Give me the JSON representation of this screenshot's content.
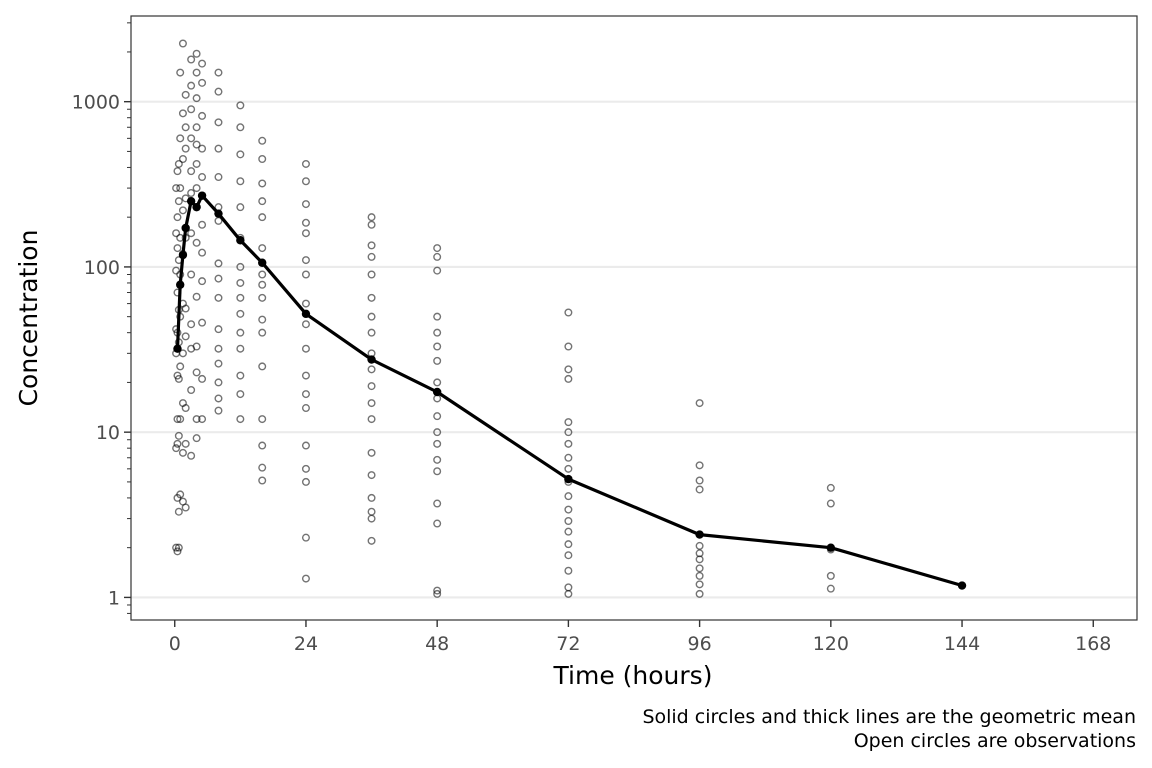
{
  "chart_data": {
    "type": "scatter",
    "xlabel": "Time (hours)",
    "ylabel": "Concentration",
    "caption": [
      "Solid circles and thick lines are the geometric mean",
      "Open circles are observations"
    ],
    "xlim": [
      -8,
      176
    ],
    "ylim": [
      0.73,
      3300
    ],
    "y_scale": "log",
    "x_ticks": [
      0,
      24,
      48,
      72,
      96,
      120,
      144,
      168
    ],
    "x_tick_labels": [
      "0",
      "24",
      "48",
      "72",
      "96",
      "120",
      "144",
      "168"
    ],
    "y_ticks": [
      1,
      10,
      100,
      1000
    ],
    "y_tick_labels": [
      "1",
      "10",
      "100",
      "1000"
    ],
    "grid": "horizontal major",
    "series": [
      {
        "name": "Geometric mean",
        "marker": "solid circle",
        "line": "thick",
        "x": [
          0.5,
          1,
          1.5,
          2,
          3,
          4,
          5,
          8,
          12,
          16,
          24,
          36,
          48,
          72,
          96,
          120,
          144
        ],
        "y": [
          32,
          78,
          118,
          172,
          250,
          230,
          270,
          210,
          145,
          106,
          52,
          27.5,
          17.5,
          5.2,
          2.4,
          2.0,
          1.18
        ]
      },
      {
        "name": "Observations",
        "marker": "open circle",
        "points": [
          [
            0.25,
            2.0
          ],
          [
            0.25,
            8.0
          ],
          [
            0.25,
            30
          ],
          [
            0.25,
            42
          ],
          [
            0.25,
            95
          ],
          [
            0.25,
            160
          ],
          [
            0.25,
            300
          ],
          [
            0.5,
            1.9
          ],
          [
            0.5,
            4.0
          ],
          [
            0.5,
            8.5
          ],
          [
            0.5,
            12
          ],
          [
            0.5,
            22
          ],
          [
            0.5,
            40
          ],
          [
            0.5,
            70
          ],
          [
            0.5,
            130
          ],
          [
            0.5,
            200
          ],
          [
            0.5,
            380
          ],
          [
            0.75,
            2.0
          ],
          [
            0.75,
            3.3
          ],
          [
            0.75,
            9.5
          ],
          [
            0.75,
            21
          ],
          [
            0.75,
            35
          ],
          [
            0.75,
            55
          ],
          [
            0.75,
            110
          ],
          [
            0.75,
            250
          ],
          [
            0.75,
            420
          ],
          [
            1.0,
            4.2
          ],
          [
            1.0,
            12
          ],
          [
            1.0,
            25
          ],
          [
            1.0,
            50
          ],
          [
            1.0,
            90
          ],
          [
            1.0,
            150
          ],
          [
            1.0,
            300
          ],
          [
            1.0,
            600
          ],
          [
            1.0,
            1500
          ],
          [
            1.5,
            3.8
          ],
          [
            1.5,
            7.5
          ],
          [
            1.5,
            15
          ],
          [
            1.5,
            30
          ],
          [
            1.5,
            60
          ],
          [
            1.5,
            120
          ],
          [
            1.5,
            220
          ],
          [
            1.5,
            450
          ],
          [
            1.5,
            850
          ],
          [
            1.5,
            2250
          ],
          [
            2,
            3.5
          ],
          [
            2,
            8.5
          ],
          [
            2,
            14
          ],
          [
            2,
            38
          ],
          [
            2,
            56
          ],
          [
            2,
            150
          ],
          [
            2,
            260
          ],
          [
            2,
            520
          ],
          [
            2,
            700
          ],
          [
            2,
            1100
          ],
          [
            3,
            7.2
          ],
          [
            3,
            18
          ],
          [
            3,
            32
          ],
          [
            3,
            45
          ],
          [
            3,
            90
          ],
          [
            3,
            160
          ],
          [
            3,
            280
          ],
          [
            3,
            380
          ],
          [
            3,
            600
          ],
          [
            3,
            900
          ],
          [
            3,
            1250
          ],
          [
            3,
            1800
          ],
          [
            4,
            9.2
          ],
          [
            4,
            12
          ],
          [
            4,
            23
          ],
          [
            4,
            33
          ],
          [
            4,
            66
          ],
          [
            4,
            140
          ],
          [
            4,
            230
          ],
          [
            4,
            300
          ],
          [
            4,
            420
          ],
          [
            4,
            550
          ],
          [
            4,
            700
          ],
          [
            4,
            1050
          ],
          [
            4,
            1500
          ],
          [
            4,
            1950
          ],
          [
            5,
            12
          ],
          [
            5,
            21
          ],
          [
            5,
            46
          ],
          [
            5,
            82
          ],
          [
            5,
            122
          ],
          [
            5,
            180
          ],
          [
            5,
            270
          ],
          [
            5,
            350
          ],
          [
            5,
            520
          ],
          [
            5,
            820
          ],
          [
            5,
            1300
          ],
          [
            5,
            1700
          ],
          [
            8,
            13.5
          ],
          [
            8,
            16
          ],
          [
            8,
            20
          ],
          [
            8,
            26
          ],
          [
            8,
            32
          ],
          [
            8,
            42
          ],
          [
            8,
            65
          ],
          [
            8,
            85
          ],
          [
            8,
            105
          ],
          [
            8,
            190
          ],
          [
            8,
            230
          ],
          [
            8,
            350
          ],
          [
            8,
            520
          ],
          [
            8,
            750
          ],
          [
            8,
            1150
          ],
          [
            8,
            1500
          ],
          [
            12,
            12
          ],
          [
            12,
            17
          ],
          [
            12,
            22
          ],
          [
            12,
            32
          ],
          [
            12,
            40
          ],
          [
            12,
            52
          ],
          [
            12,
            65
          ],
          [
            12,
            80
          ],
          [
            12,
            100
          ],
          [
            12,
            150
          ],
          [
            12,
            230
          ],
          [
            12,
            330
          ],
          [
            12,
            480
          ],
          [
            12,
            700
          ],
          [
            12,
            950
          ],
          [
            16,
            5.1
          ],
          [
            16,
            6.1
          ],
          [
            16,
            8.3
          ],
          [
            16,
            12
          ],
          [
            16,
            25
          ],
          [
            16,
            40
          ],
          [
            16,
            48
          ],
          [
            16,
            65
          ],
          [
            16,
            78
          ],
          [
            16,
            90
          ],
          [
            16,
            130
          ],
          [
            16,
            200
          ],
          [
            16,
            250
          ],
          [
            16,
            320
          ],
          [
            16,
            450
          ],
          [
            16,
            580
          ],
          [
            24,
            1.3
          ],
          [
            24,
            2.3
          ],
          [
            24,
            5.0
          ],
          [
            24,
            6.0
          ],
          [
            24,
            8.3
          ],
          [
            24,
            14
          ],
          [
            24,
            17
          ],
          [
            24,
            22
          ],
          [
            24,
            32
          ],
          [
            24,
            45
          ],
          [
            24,
            60
          ],
          [
            24,
            90
          ],
          [
            24,
            110
          ],
          [
            24,
            160
          ],
          [
            24,
            185
          ],
          [
            24,
            240
          ],
          [
            24,
            330
          ],
          [
            24,
            420
          ],
          [
            36,
            2.2
          ],
          [
            36,
            3.0
          ],
          [
            36,
            3.3
          ],
          [
            36,
            4.0
          ],
          [
            36,
            5.5
          ],
          [
            36,
            7.5
          ],
          [
            36,
            12
          ],
          [
            36,
            15
          ],
          [
            36,
            19
          ],
          [
            36,
            24
          ],
          [
            36,
            30
          ],
          [
            36,
            40
          ],
          [
            36,
            50
          ],
          [
            36,
            65
          ],
          [
            36,
            90
          ],
          [
            36,
            115
          ],
          [
            36,
            135
          ],
          [
            36,
            180
          ],
          [
            36,
            200
          ],
          [
            48,
            1.05
          ],
          [
            48,
            1.1
          ],
          [
            48,
            2.8
          ],
          [
            48,
            3.7
          ],
          [
            48,
            5.8
          ],
          [
            48,
            6.8
          ],
          [
            48,
            8.5
          ],
          [
            48,
            10
          ],
          [
            48,
            12.5
          ],
          [
            48,
            16
          ],
          [
            48,
            20
          ],
          [
            48,
            27
          ],
          [
            48,
            33
          ],
          [
            48,
            40
          ],
          [
            48,
            50
          ],
          [
            48,
            95
          ],
          [
            48,
            115
          ],
          [
            48,
            130
          ],
          [
            72,
            1.05
          ],
          [
            72,
            1.15
          ],
          [
            72,
            1.45
          ],
          [
            72,
            1.8
          ],
          [
            72,
            2.1
          ],
          [
            72,
            2.5
          ],
          [
            72,
            2.9
          ],
          [
            72,
            3.4
          ],
          [
            72,
            4.1
          ],
          [
            72,
            5.0
          ],
          [
            72,
            6.0
          ],
          [
            72,
            7.0
          ],
          [
            72,
            8.5
          ],
          [
            72,
            10
          ],
          [
            72,
            11.5
          ],
          [
            72,
            21
          ],
          [
            72,
            24
          ],
          [
            72,
            33
          ],
          [
            72,
            53
          ],
          [
            96,
            1.05
          ],
          [
            96,
            1.2
          ],
          [
            96,
            1.35
          ],
          [
            96,
            1.5
          ],
          [
            96,
            1.7
          ],
          [
            96,
            1.85
          ],
          [
            96,
            2.05
          ],
          [
            96,
            4.5
          ],
          [
            96,
            5.1
          ],
          [
            96,
            6.3
          ],
          [
            96,
            15
          ],
          [
            120,
            1.13
          ],
          [
            120,
            1.35
          ],
          [
            120,
            1.95
          ],
          [
            120,
            3.7
          ],
          [
            120,
            4.6
          ]
        ]
      }
    ]
  }
}
